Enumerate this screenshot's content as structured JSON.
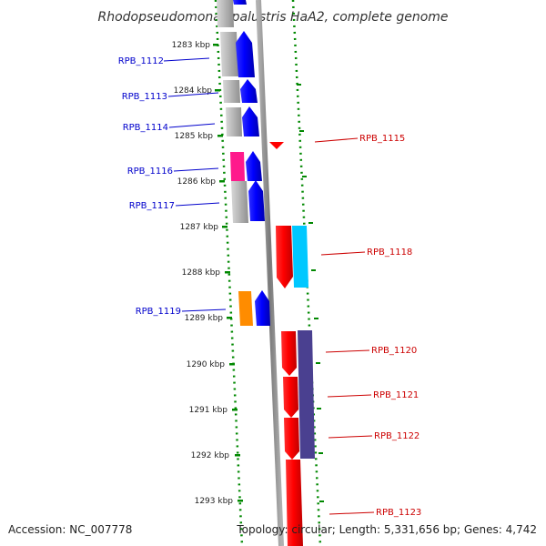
{
  "title": "Rhodopseudomonas palustris HaA2, complete genome",
  "footer": {
    "accession": "Accession: NC_007778",
    "summary": "Topology: circular; Length: 5,331,656 bp; Genes: 4,742"
  },
  "ticks": [
    "1283 kbp",
    "1284 kbp",
    "1285 kbp",
    "1286 kbp",
    "1287 kbp",
    "1288 kbp",
    "1289 kbp",
    "1290 kbp",
    "1291 kbp",
    "1292 kbp",
    "1293 kbp"
  ],
  "genes": [
    {
      "id": "RPB_1112",
      "strand": "forward",
      "color": "#0000cc"
    },
    {
      "id": "RPB_1113",
      "strand": "forward",
      "color": "#0000cc"
    },
    {
      "id": "RPB_1114",
      "strand": "forward",
      "color": "#0000cc"
    },
    {
      "id": "RPB_1115",
      "strand": "reverse",
      "color": "#cc0000"
    },
    {
      "id": "RPB_1116",
      "strand": "forward",
      "color": "#0000cc"
    },
    {
      "id": "RPB_1117",
      "strand": "forward",
      "color": "#0000cc"
    },
    {
      "id": "RPB_1118",
      "strand": "reverse",
      "color": "#cc0000"
    },
    {
      "id": "RPB_1119",
      "strand": "forward",
      "color": "#0000cc"
    },
    {
      "id": "RPB_1120",
      "strand": "reverse",
      "color": "#cc0000"
    },
    {
      "id": "RPB_1121",
      "strand": "reverse",
      "color": "#cc0000"
    },
    {
      "id": "RPB_1122",
      "strand": "reverse",
      "color": "#cc0000"
    },
    {
      "id": "RPB_1123",
      "strand": "reverse",
      "color": "#cc0000"
    }
  ],
  "colors": {
    "forward_gene": "#0000ff",
    "reverse_gene": "#ff0000",
    "backbone": "#8c8c8c",
    "dotted_ring": "#008800",
    "cog_gray": "#b0b0b0",
    "cog_pink": "#ff1a8c",
    "cog_orange": "#ff8c00",
    "cog_cyan": "#00c8ff",
    "cog_purple": "#4a4090"
  }
}
